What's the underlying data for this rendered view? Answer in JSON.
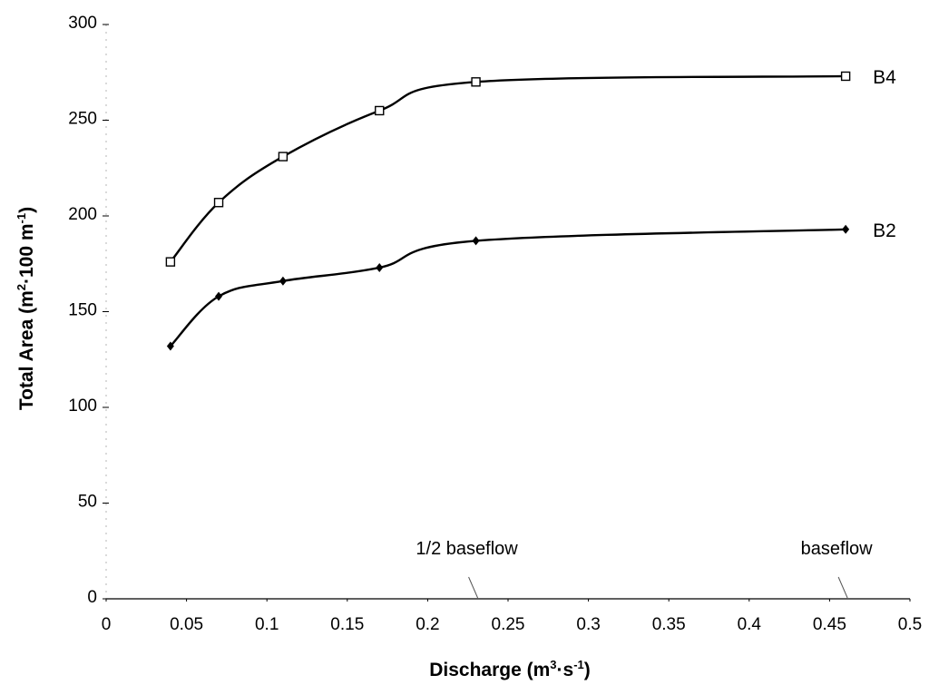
{
  "chart_data": {
    "type": "line",
    "xlabel": "Discharge (m³·s⁻¹)",
    "ylabel": "Total Area (m²·100 m⁻¹)",
    "xlim": [
      0,
      0.5
    ],
    "ylim": [
      0,
      300
    ],
    "x_ticks": [
      "0",
      "0.05",
      "0.1",
      "0.15",
      "0.2",
      "0.25",
      "0.3",
      "0.35",
      "0.4",
      "0.45",
      "0.5"
    ],
    "y_ticks": [
      "0",
      "50",
      "100",
      "150",
      "200",
      "250",
      "300"
    ],
    "grid": false,
    "series": [
      {
        "name": "B4",
        "marker": "open-square",
        "x": [
          0.04,
          0.07,
          0.11,
          0.17,
          0.23,
          0.46
        ],
        "y": [
          176,
          207,
          231,
          255,
          270,
          273
        ]
      },
      {
        "name": "B2",
        "marker": "filled-diamond",
        "x": [
          0.04,
          0.07,
          0.11,
          0.17,
          0.23,
          0.46
        ],
        "y": [
          132,
          158,
          166,
          173,
          187,
          193
        ]
      }
    ],
    "annotations": [
      {
        "text": "1/2 baseflow",
        "x": 0.23
      },
      {
        "text": "baseflow",
        "x": 0.46
      }
    ]
  }
}
